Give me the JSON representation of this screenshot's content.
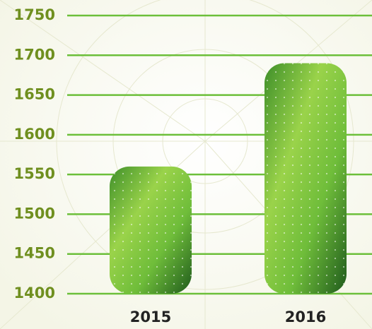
{
  "chart_data": {
    "type": "bar",
    "categories": [
      "2015",
      "2016"
    ],
    "values": [
      1560,
      1690
    ],
    "color": "#5dab2c",
    "ylim": [
      1400,
      1750
    ],
    "yticks": [
      1400,
      1450,
      1500,
      1550,
      1600,
      1650,
      1700,
      1750
    ],
    "grid": true
  }
}
